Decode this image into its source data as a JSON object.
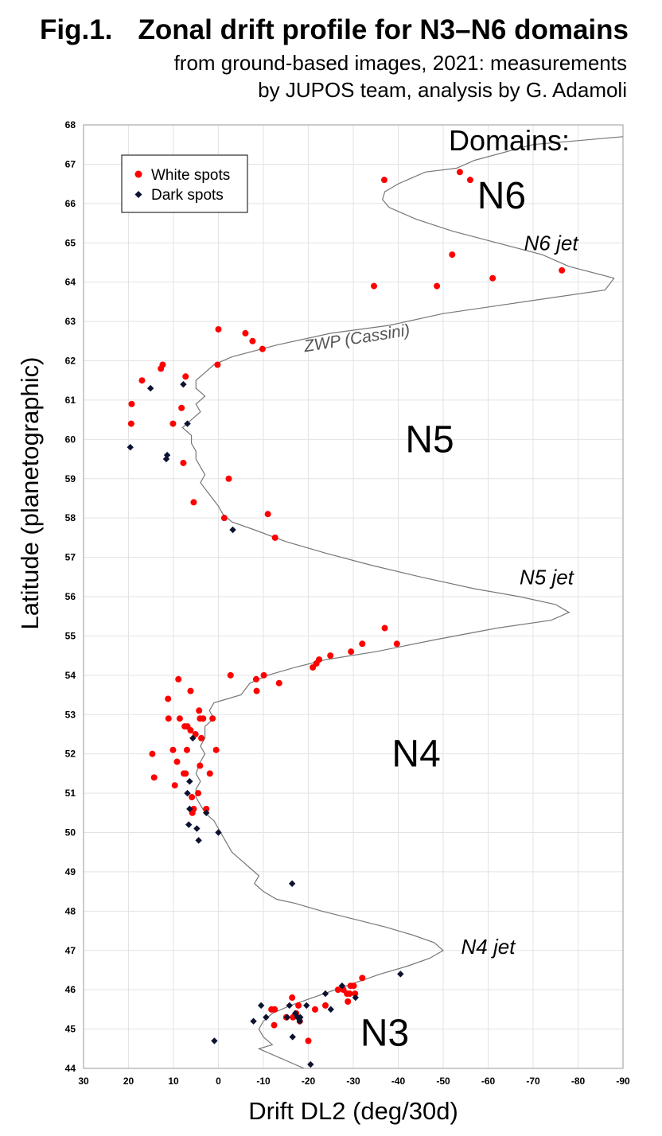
{
  "title": {
    "fig_number": "Fig.1.",
    "main": "Zonal drift profile for N3–N6 domains",
    "subtitle_line1": "from ground-based images, 2021: measurements",
    "subtitle_line2": "by JUPOS team, analysis by G. Adamoli"
  },
  "chart_data": {
    "type": "scatter",
    "xlabel": "Drift DL2 (deg/30d)",
    "ylabel": "Latitude (planetographic)",
    "xlim": [
      30,
      -90
    ],
    "ylim": [
      44,
      68
    ],
    "x_reversed": true,
    "x_ticks": [
      30,
      20,
      10,
      0,
      -10,
      -20,
      -30,
      -40,
      -50,
      -60,
      -70,
      -80,
      -90
    ],
    "y_ticks": [
      44,
      45,
      46,
      47,
      48,
      49,
      50,
      51,
      52,
      53,
      54,
      55,
      56,
      57,
      58,
      59,
      60,
      61,
      62,
      63,
      64,
      65,
      66,
      67,
      68
    ],
    "grid": true,
    "legend_position": "top-left",
    "series": [
      {
        "name": "White spots",
        "marker": "circle",
        "color": "#ff0000",
        "points": [
          [
            -36.9,
            66.6
          ],
          [
            -53.7,
            66.8
          ],
          [
            -56.0,
            66.6
          ],
          [
            -52.0,
            64.7
          ],
          [
            -76.4,
            64.3
          ],
          [
            -34.6,
            63.9
          ],
          [
            -48.6,
            63.9
          ],
          [
            -61.0,
            64.1
          ],
          [
            0.0,
            62.8
          ],
          [
            -6.0,
            62.7
          ],
          [
            -7.6,
            62.5
          ],
          [
            -9.8,
            62.3
          ],
          [
            12.4,
            61.9
          ],
          [
            12.8,
            61.8
          ],
          [
            0.2,
            61.9
          ],
          [
            7.3,
            61.6
          ],
          [
            17.0,
            61.5
          ],
          [
            19.3,
            60.9
          ],
          [
            8.2,
            60.8
          ],
          [
            19.4,
            60.4
          ],
          [
            10.1,
            60.4
          ],
          [
            7.8,
            59.4
          ],
          [
            -2.3,
            59.0
          ],
          [
            5.5,
            58.4
          ],
          [
            -11.0,
            58.1
          ],
          [
            -1.3,
            58.0
          ],
          [
            -12.6,
            57.5
          ],
          [
            -37.0,
            55.2
          ],
          [
            -39.7,
            54.8
          ],
          [
            -32.0,
            54.8
          ],
          [
            -29.5,
            54.6
          ],
          [
            -24.9,
            54.5
          ],
          [
            -22.4,
            54.4
          ],
          [
            -21.8,
            54.3
          ],
          [
            -21.0,
            54.2
          ],
          [
            -2.7,
            54.0
          ],
          [
            -10.1,
            54.0
          ],
          [
            -8.4,
            53.9
          ],
          [
            -13.5,
            53.8
          ],
          [
            -8.5,
            53.6
          ],
          [
            8.9,
            53.9
          ],
          [
            6.2,
            53.6
          ],
          [
            11.2,
            53.4
          ],
          [
            4.3,
            53.1
          ],
          [
            11.1,
            52.9
          ],
          [
            8.6,
            52.9
          ],
          [
            4.1,
            52.9
          ],
          [
            3.4,
            52.9
          ],
          [
            1.3,
            52.9
          ],
          [
            7.5,
            52.7
          ],
          [
            6.9,
            52.7
          ],
          [
            6.2,
            52.6
          ],
          [
            5.1,
            52.5
          ],
          [
            3.8,
            52.4
          ],
          [
            0.5,
            52.1
          ],
          [
            10.1,
            52.1
          ],
          [
            7.0,
            52.1
          ],
          [
            14.7,
            52.0
          ],
          [
            9.2,
            51.8
          ],
          [
            4.1,
            51.7
          ],
          [
            7.7,
            51.5
          ],
          [
            7.3,
            51.5
          ],
          [
            1.9,
            51.5
          ],
          [
            14.3,
            51.4
          ],
          [
            9.7,
            51.2
          ],
          [
            4.5,
            51.0
          ],
          [
            5.9,
            50.9
          ],
          [
            2.7,
            50.6
          ],
          [
            5.5,
            50.6
          ],
          [
            5.8,
            50.5
          ],
          [
            -32.0,
            46.3
          ],
          [
            -30.1,
            46.1
          ],
          [
            -29.4,
            46.1
          ],
          [
            -27.8,
            46.0
          ],
          [
            -26.6,
            46.0
          ],
          [
            -28.6,
            45.9
          ],
          [
            -29.2,
            45.9
          ],
          [
            -30.4,
            45.9
          ],
          [
            -28.8,
            45.7
          ],
          [
            -16.4,
            45.8
          ],
          [
            -23.8,
            45.6
          ],
          [
            -17.8,
            45.6
          ],
          [
            -11.8,
            45.5
          ],
          [
            -12.5,
            45.5
          ],
          [
            -21.5,
            45.5
          ],
          [
            -17.3,
            45.4
          ],
          [
            -15.1,
            45.3
          ],
          [
            -16.6,
            45.3
          ],
          [
            -18.1,
            45.2
          ],
          [
            -12.4,
            45.1
          ],
          [
            -20.0,
            44.7
          ]
        ]
      },
      {
        "name": "Dark spots",
        "marker": "diamond",
        "color": "#0c1230",
        "points": [
          [
            7.8,
            61.4
          ],
          [
            15.1,
            61.3
          ],
          [
            6.9,
            60.4
          ],
          [
            19.6,
            59.8
          ],
          [
            11.4,
            59.6
          ],
          [
            11.6,
            59.5
          ],
          [
            -3.2,
            57.7
          ],
          [
            5.7,
            52.4
          ],
          [
            6.4,
            51.3
          ],
          [
            6.9,
            51.0
          ],
          [
            6.4,
            50.6
          ],
          [
            2.7,
            50.5
          ],
          [
            6.6,
            50.2
          ],
          [
            4.8,
            50.1
          ],
          [
            0.0,
            50.0
          ],
          [
            4.4,
            49.8
          ],
          [
            -16.4,
            48.7
          ],
          [
            -40.5,
            46.4
          ],
          [
            -27.5,
            46.1
          ],
          [
            -23.8,
            45.9
          ],
          [
            -30.5,
            45.8
          ],
          [
            -9.5,
            45.6
          ],
          [
            -15.8,
            45.6
          ],
          [
            -19.6,
            45.6
          ],
          [
            -25.0,
            45.5
          ],
          [
            -10.6,
            45.3
          ],
          [
            -15.3,
            45.3
          ],
          [
            -17.1,
            45.4
          ],
          [
            -17.6,
            45.3
          ],
          [
            -7.8,
            45.2
          ],
          [
            -18.2,
            45.3
          ],
          [
            -18.1,
            45.2
          ],
          [
            -16.5,
            44.8
          ],
          [
            0.9,
            44.7
          ],
          [
            -20.5,
            44.1
          ]
        ]
      }
    ],
    "profile": {
      "name": "ZWP (Cassini)",
      "color": "#777777",
      "points": [
        [
          -90,
          67.7
        ],
        [
          -70,
          67.5
        ],
        [
          -57,
          67.1
        ],
        [
          -53,
          66.9
        ],
        [
          -46,
          66.8
        ],
        [
          -40,
          66.5
        ],
        [
          -37,
          66.3
        ],
        [
          -36.5,
          66.1
        ],
        [
          -38,
          65.9
        ],
        [
          -44,
          65.6
        ],
        [
          -52,
          65.3
        ],
        [
          -62,
          65.0
        ],
        [
          -72,
          64.7
        ],
        [
          -78,
          64.4
        ],
        [
          -88,
          64.1
        ],
        [
          -86,
          63.8
        ],
        [
          -74,
          63.6
        ],
        [
          -62,
          63.4
        ],
        [
          -50,
          63.2
        ],
        [
          -38,
          62.9
        ],
        [
          -25,
          62.7
        ],
        [
          -13,
          62.4
        ],
        [
          -3,
          62.1
        ],
        [
          1,
          61.9
        ],
        [
          3,
          61.7
        ],
        [
          5,
          61.5
        ],
        [
          5,
          61.3
        ],
        [
          3,
          61.1
        ],
        [
          5,
          60.9
        ],
        [
          4,
          60.7
        ],
        [
          6,
          60.5
        ],
        [
          8,
          60.3
        ],
        [
          6,
          60.1
        ],
        [
          6,
          59.9
        ],
        [
          5,
          59.7
        ],
        [
          5,
          59.5
        ],
        [
          4,
          59.3
        ],
        [
          3,
          59.1
        ],
        [
          4,
          58.9
        ],
        [
          2,
          58.6
        ],
        [
          0,
          58.3
        ],
        [
          -1,
          58.1
        ],
        [
          -3,
          57.9
        ],
        [
          -8,
          57.7
        ],
        [
          -15,
          57.4
        ],
        [
          -24,
          57.1
        ],
        [
          -34,
          56.8
        ],
        [
          -45,
          56.5
        ],
        [
          -57,
          56.2
        ],
        [
          -67,
          56.0
        ],
        [
          -75,
          55.8
        ],
        [
          -78,
          55.6
        ],
        [
          -74,
          55.4
        ],
        [
          -62,
          55.2
        ],
        [
          -48,
          54.9
        ],
        [
          -35,
          54.6
        ],
        [
          -24,
          54.4
        ],
        [
          -17,
          54.2
        ],
        [
          -11,
          54.0
        ],
        [
          -7,
          53.8
        ],
        [
          -5,
          53.5
        ],
        [
          -2,
          53.4
        ],
        [
          1,
          53.3
        ],
        [
          2,
          53.1
        ],
        [
          1,
          52.9
        ],
        [
          3,
          52.7
        ],
        [
          3,
          52.4
        ],
        [
          4,
          52.2
        ],
        [
          3,
          52.0
        ],
        [
          4,
          51.8
        ],
        [
          5,
          51.5
        ],
        [
          4,
          51.3
        ],
        [
          5,
          51.1
        ],
        [
          5,
          50.9
        ],
        [
          4,
          50.7
        ],
        [
          3,
          50.5
        ],
        [
          1,
          50.3
        ],
        [
          0,
          50.1
        ],
        [
          -1,
          49.9
        ],
        [
          -2,
          49.7
        ],
        [
          -3,
          49.5
        ],
        [
          -5,
          49.3
        ],
        [
          -7,
          49.1
        ],
        [
          -9,
          48.9
        ],
        [
          -8,
          48.7
        ],
        [
          -10,
          48.5
        ],
        [
          -13,
          48.3
        ],
        [
          -17,
          48.2
        ],
        [
          -23,
          48.0
        ],
        [
          -30,
          47.8
        ],
        [
          -37,
          47.6
        ],
        [
          -43,
          47.4
        ],
        [
          -48,
          47.2
        ],
        [
          -50,
          47.0
        ],
        [
          -47,
          46.8
        ],
        [
          -42,
          46.6
        ],
        [
          -36,
          46.4
        ],
        [
          -31,
          46.2
        ],
        [
          -26,
          46.0
        ],
        [
          -21,
          45.8
        ],
        [
          -16,
          45.6
        ],
        [
          -12,
          45.4
        ],
        [
          -10,
          45.2
        ],
        [
          -9,
          45.0
        ],
        [
          -10,
          44.8
        ],
        [
          -12,
          44.6
        ],
        [
          -9,
          44.5
        ],
        [
          -11,
          44.4
        ],
        [
          -15,
          44.2
        ],
        [
          -19,
          44.0
        ]
      ]
    },
    "domains_heading": "Domains:",
    "domain_labels": [
      {
        "text": "N6",
        "x": -63,
        "y": 66.2
      },
      {
        "text": "N5",
        "x": -47,
        "y": 60.0
      },
      {
        "text": "N4",
        "x": -44,
        "y": 52.0
      },
      {
        "text": "N3",
        "x": -37,
        "y": 44.9
      }
    ],
    "jet_labels": [
      {
        "text": "N6 jet",
        "x": -74,
        "y": 65.0
      },
      {
        "text": "N5 jet",
        "x": -73,
        "y": 56.5
      },
      {
        "text": "N4 jet",
        "x": -60,
        "y": 47.1
      }
    ],
    "profile_label": {
      "text": "ZWP (Cassini)",
      "x": -31,
      "y": 62.6
    }
  }
}
